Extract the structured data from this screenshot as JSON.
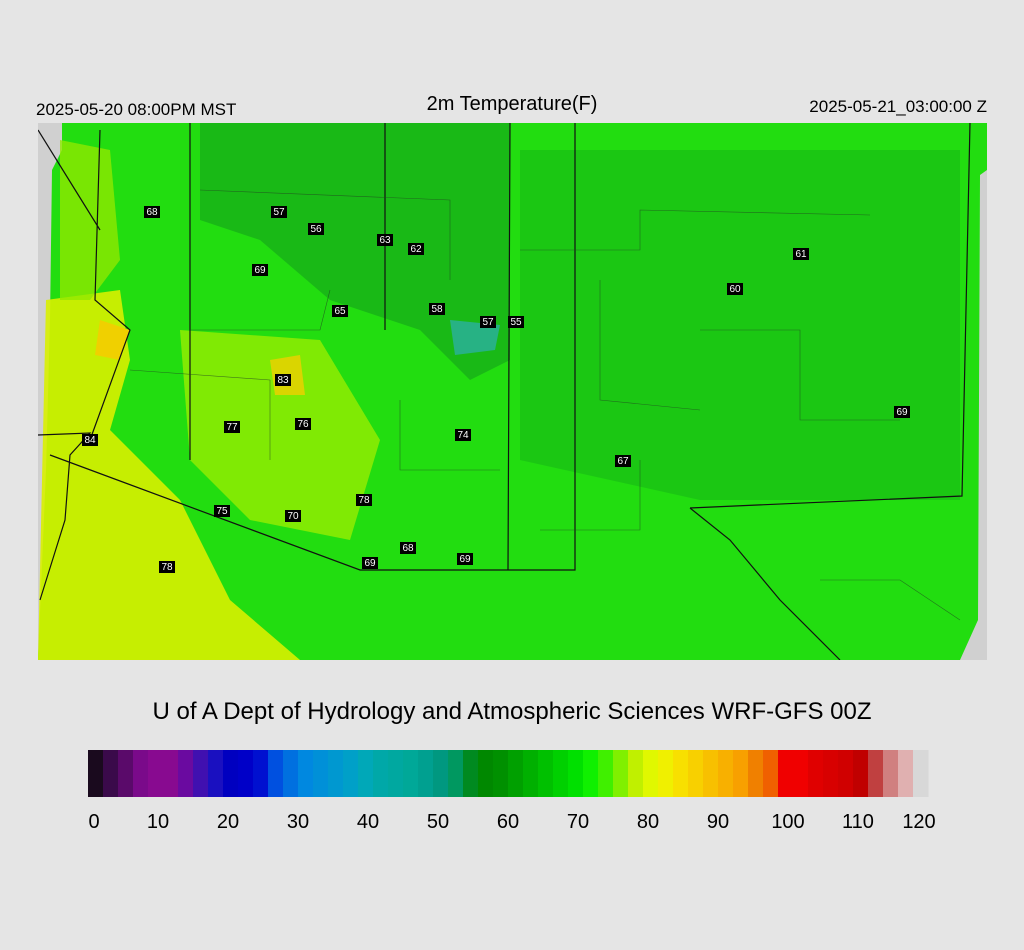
{
  "header": {
    "left": "2025-05-20 08:00PM MST",
    "title": "2m Temperature(F)",
    "right": "2025-05-21_03:00:00 Z"
  },
  "stations": [
    68,
    57,
    56,
    63,
    62,
    69,
    65,
    58,
    57,
    55,
    61,
    60,
    83,
    77,
    76,
    74,
    84,
    69,
    67,
    78,
    75,
    70,
    68,
    69,
    69,
    78
  ],
  "credit": "U of A Dept of Hydrology and Atmospheric Sciences WRF-GFS 00Z",
  "colorbar": {
    "range": [
      0,
      120
    ],
    "ticks": [
      0,
      10,
      20,
      30,
      40,
      50,
      60,
      70,
      80,
      90,
      100,
      110,
      120
    ],
    "colors": [
      "#1a0a1e",
      "#3a0a4a",
      "#5a0a6a",
      "#7a0a8a",
      "#880a90",
      "#880a90",
      "#6a0aa0",
      "#4010b0",
      "#1a10c0",
      "#0000c0",
      "#0000c8",
      "#0010d0",
      "#0050e0",
      "#0070e0",
      "#0088e0",
      "#0090d8",
      "#0098d0",
      "#00a0c8",
      "#00a8b8",
      "#00a8a8",
      "#00a8a0",
      "#00a898",
      "#00a090",
      "#009880",
      "#009860",
      "#008a20",
      "#008800",
      "#009000",
      "#00a000",
      "#00b000",
      "#00c000",
      "#00d000",
      "#00e000",
      "#10f000",
      "#40f000",
      "#80f000",
      "#c0f000",
      "#e0f800",
      "#f0f000",
      "#f8e000",
      "#f8d000",
      "#f8c000",
      "#f8b000",
      "#f8a000",
      "#f08000",
      "#f06000",
      "#f00000",
      "#f00000",
      "#e00000",
      "#d80000",
      "#d00000",
      "#c00000",
      "#c04040",
      "#d08080",
      "#e0b0b0",
      "#d8d8d8"
    ]
  }
}
